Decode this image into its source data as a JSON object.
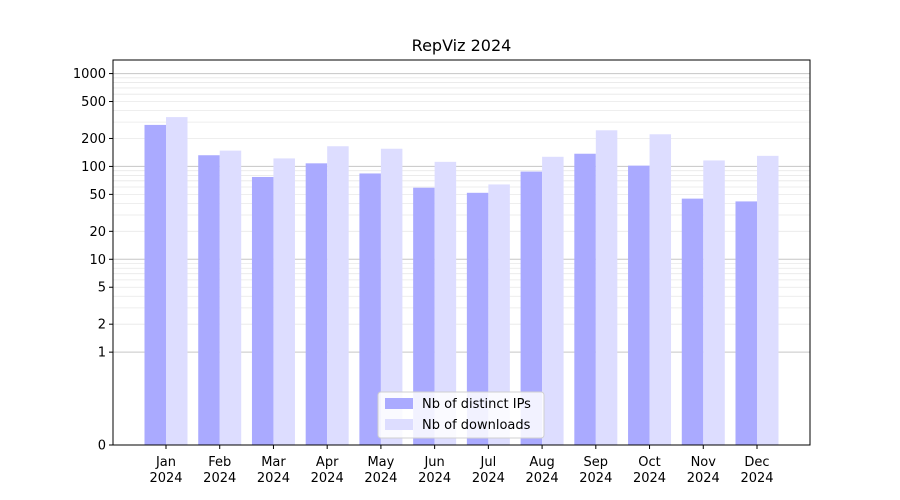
{
  "chart_data": {
    "type": "bar",
    "title": "RepViz 2024",
    "xlabel": "",
    "ylabel": "",
    "y_scale": "symlog",
    "ylim": [
      0,
      1400
    ],
    "y_ticks": [
      {
        "value": 0,
        "label": "0"
      },
      {
        "value": 1,
        "label": "1"
      },
      {
        "value": 2,
        "label": "2"
      },
      {
        "value": 5,
        "label": "5"
      },
      {
        "value": 10,
        "label": "10"
      },
      {
        "value": 20,
        "label": "20"
      },
      {
        "value": 50,
        "label": "50"
      },
      {
        "value": 100,
        "label": "100"
      },
      {
        "value": 200,
        "label": "200"
      },
      {
        "value": 500,
        "label": "500"
      },
      {
        "value": 1000,
        "label": "1000"
      }
    ],
    "grid": true,
    "legend_position": "bottom-center",
    "categories": [
      [
        "Jan",
        "2024"
      ],
      [
        "Feb",
        "2024"
      ],
      [
        "Mar",
        "2024"
      ],
      [
        "Apr",
        "2024"
      ],
      [
        "May",
        "2024"
      ],
      [
        "Jun",
        "2024"
      ],
      [
        "Jul",
        "2024"
      ],
      [
        "Aug",
        "2024"
      ],
      [
        "Sep",
        "2024"
      ],
      [
        "Oct",
        "2024"
      ],
      [
        "Nov",
        "2024"
      ],
      [
        "Dec",
        "2024"
      ]
    ],
    "series": [
      {
        "name": "Nb of distinct IPs",
        "color": "#aaaaff",
        "values": [
          280,
          132,
          77,
          108,
          84,
          59,
          52,
          88,
          137,
          102,
          45,
          42
        ]
      },
      {
        "name": "Nb of downloads",
        "color": "#ddddff",
        "values": [
          340,
          148,
          122,
          165,
          155,
          112,
          64,
          127,
          245,
          222,
          116,
          130
        ]
      }
    ]
  }
}
